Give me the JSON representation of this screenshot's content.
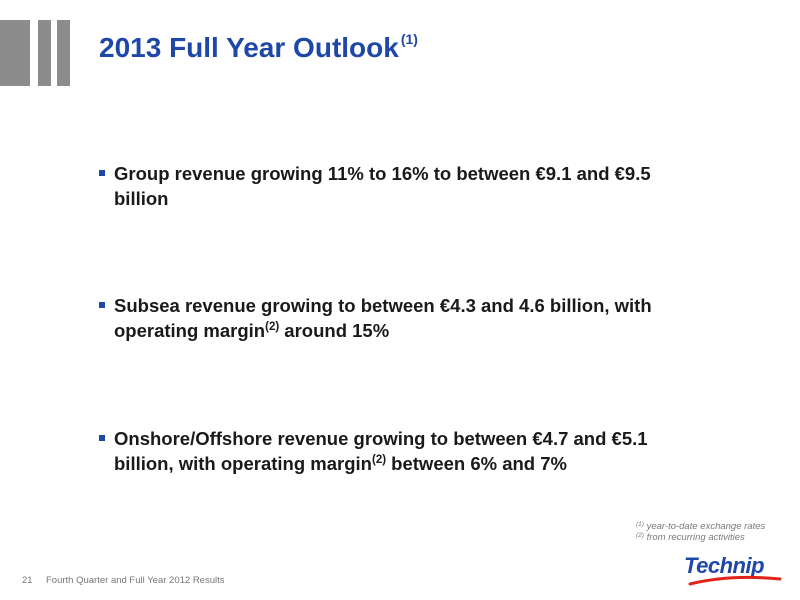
{
  "slide": {
    "title": "2013 Full Year Outlook",
    "title_sup": "(1)"
  },
  "bullets": [
    {
      "text_before": "Group revenue growing 11% to 16% to between €9.1 and €9.5 billion",
      "sup": "",
      "text_after": ""
    },
    {
      "text_before": "Subsea revenue growing to between €4.3 and 4.6 billion, with operating margin",
      "sup": "(2)",
      "text_after": " around 15%"
    },
    {
      "text_before": "Onshore/Offshore revenue growing to between €4.7 and €5.1 billion, with operating margin",
      "sup": "(2)",
      "text_after": " between 6% and 7%"
    }
  ],
  "footnotes": [
    {
      "marker": "(1)",
      "text": " year-to-date exchange rates"
    },
    {
      "marker": "(2)",
      "text": " from recurring activities"
    }
  ],
  "footer": {
    "page_number": "21",
    "text": "Fourth Quarter and Full Year 2012 Results"
  },
  "logo": {
    "text": "Technip",
    "accent_color": "#e2231a"
  },
  "colors": {
    "title": "#1f47a8",
    "bullet_marker": "#1f47a8",
    "decor_bars": "#8c8c8c"
  }
}
